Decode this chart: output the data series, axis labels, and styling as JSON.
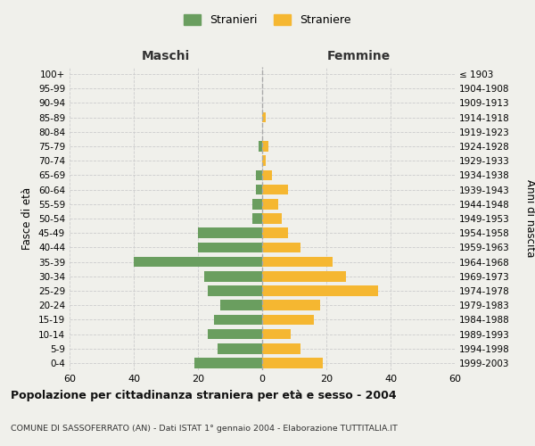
{
  "age_groups": [
    "100+",
    "95-99",
    "90-94",
    "85-89",
    "80-84",
    "75-79",
    "70-74",
    "65-69",
    "60-64",
    "55-59",
    "50-54",
    "45-49",
    "40-44",
    "35-39",
    "30-34",
    "25-29",
    "20-24",
    "15-19",
    "10-14",
    "5-9",
    "0-4"
  ],
  "birth_years": [
    "≤ 1903",
    "1904-1908",
    "1909-1913",
    "1914-1918",
    "1919-1923",
    "1924-1928",
    "1929-1933",
    "1934-1938",
    "1939-1943",
    "1944-1948",
    "1949-1953",
    "1954-1958",
    "1959-1963",
    "1964-1968",
    "1969-1973",
    "1974-1978",
    "1979-1983",
    "1984-1988",
    "1989-1993",
    "1994-1998",
    "1999-2003"
  ],
  "males": [
    0,
    0,
    0,
    0,
    0,
    1,
    0,
    2,
    2,
    3,
    3,
    20,
    20,
    40,
    18,
    17,
    13,
    15,
    17,
    14,
    21
  ],
  "females": [
    0,
    0,
    0,
    1,
    0,
    2,
    1,
    3,
    8,
    5,
    6,
    8,
    12,
    22,
    26,
    36,
    18,
    16,
    9,
    12,
    19
  ],
  "male_color": "#6a9e5f",
  "female_color": "#f5b731",
  "background_color": "#f0f0eb",
  "grid_color": "#cccccc",
  "dashed_line_color": "#aaaaaa",
  "title": "Popolazione per cittadinanza straniera per età e sesso - 2004",
  "subtitle": "COMUNE DI SASSOFERRATO (AN) - Dati ISTAT 1° gennaio 2004 - Elaborazione TUTTITALIA.IT",
  "xlabel_left": "Maschi",
  "xlabel_right": "Femmine",
  "ylabel_left": "Fasce di età",
  "ylabel_right": "Anni di nascita",
  "legend_male": "Stranieri",
  "legend_female": "Straniere",
  "xlim": 60
}
